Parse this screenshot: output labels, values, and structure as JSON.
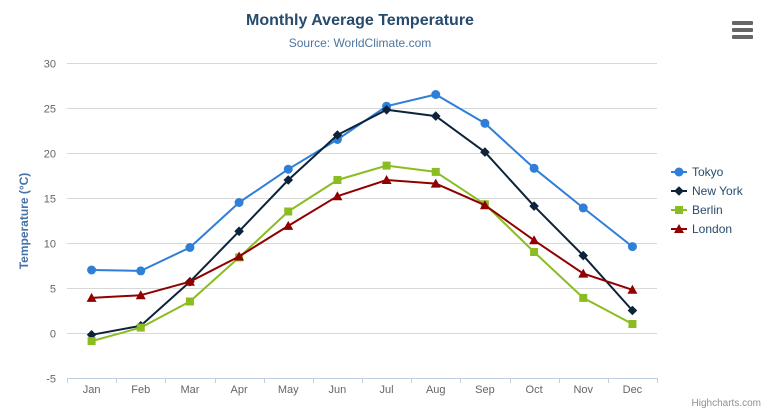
{
  "credits": "Highcharts.com",
  "colors": {
    "title": "#274b6d",
    "subtitle": "#4d759e",
    "axis_label": "#666666",
    "axis_title": "#4572a7",
    "grid_line": "#d8d8d8",
    "axis_line": "#c0d0e0",
    "legend_text": "#274b6d",
    "credits_text": "#909090",
    "menu_icon": "#666666"
  },
  "chart_data": {
    "type": "line",
    "title": "Monthly Average Temperature",
    "subtitle": "Source: WorldClimate.com",
    "categories": [
      "Jan",
      "Feb",
      "Mar",
      "Apr",
      "May",
      "Jun",
      "Jul",
      "Aug",
      "Sep",
      "Oct",
      "Nov",
      "Dec"
    ],
    "series": [
      {
        "name": "Tokyo",
        "color": "#2f7ed8",
        "marker": "circle",
        "values": [
          7.0,
          6.9,
          9.5,
          14.5,
          18.2,
          21.5,
          25.2,
          26.5,
          23.3,
          18.3,
          13.9,
          9.6
        ]
      },
      {
        "name": "New York",
        "color": "#0d233a",
        "marker": "diamond",
        "values": [
          -0.2,
          0.8,
          5.7,
          11.3,
          17.0,
          22.0,
          24.8,
          24.1,
          20.1,
          14.1,
          8.6,
          2.5
        ]
      },
      {
        "name": "Berlin",
        "color": "#8bbc21",
        "marker": "square",
        "values": [
          -0.9,
          0.6,
          3.5,
          8.4,
          13.5,
          17.0,
          18.6,
          17.9,
          14.3,
          9.0,
          3.9,
          1.0
        ]
      },
      {
        "name": "London",
        "color": "#910000",
        "marker": "triangle",
        "values": [
          3.9,
          4.2,
          5.7,
          8.5,
          11.9,
          15.2,
          17.0,
          16.6,
          14.2,
          10.3,
          6.6,
          4.8
        ]
      }
    ],
    "xlabel": "",
    "ylabel": "Temperature (°C)",
    "ylim": [
      -5,
      30
    ],
    "ytick_interval": 5,
    "grid": true,
    "legend_position": "right"
  }
}
